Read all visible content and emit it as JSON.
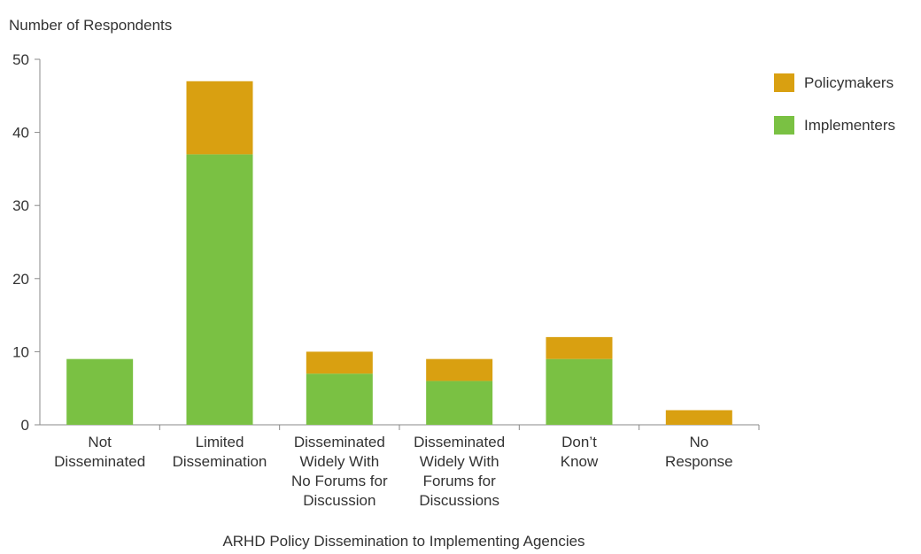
{
  "chart_data": {
    "type": "bar",
    "stacked": true,
    "title": "",
    "ylabel": "Number of Respondents",
    "xlabel": "ARHD Policy Dissemination to Implementing Agencies",
    "ylim": [
      0,
      50
    ],
    "yticks": [
      0,
      10,
      20,
      30,
      40,
      50
    ],
    "grid": false,
    "legend_position": "right",
    "categories": [
      [
        "Not",
        "Disseminated"
      ],
      [
        "Limited",
        "Dissemination"
      ],
      [
        "Disseminated",
        "Widely With",
        "No Forums for",
        "Discussion"
      ],
      [
        "Disseminated",
        "Widely With",
        "Forums for",
        "Discussions"
      ],
      [
        "Don’t",
        "Know"
      ],
      [
        "No",
        "Response"
      ]
    ],
    "series": [
      {
        "name": "Implementers",
        "color": "#7AC143",
        "values": [
          9,
          37,
          7,
          6,
          9,
          0
        ]
      },
      {
        "name": "Policymakers",
        "color": "#D9A011",
        "values": [
          0,
          10,
          3,
          3,
          3,
          2
        ]
      }
    ],
    "legend_order": [
      "Policymakers",
      "Implementers"
    ]
  }
}
